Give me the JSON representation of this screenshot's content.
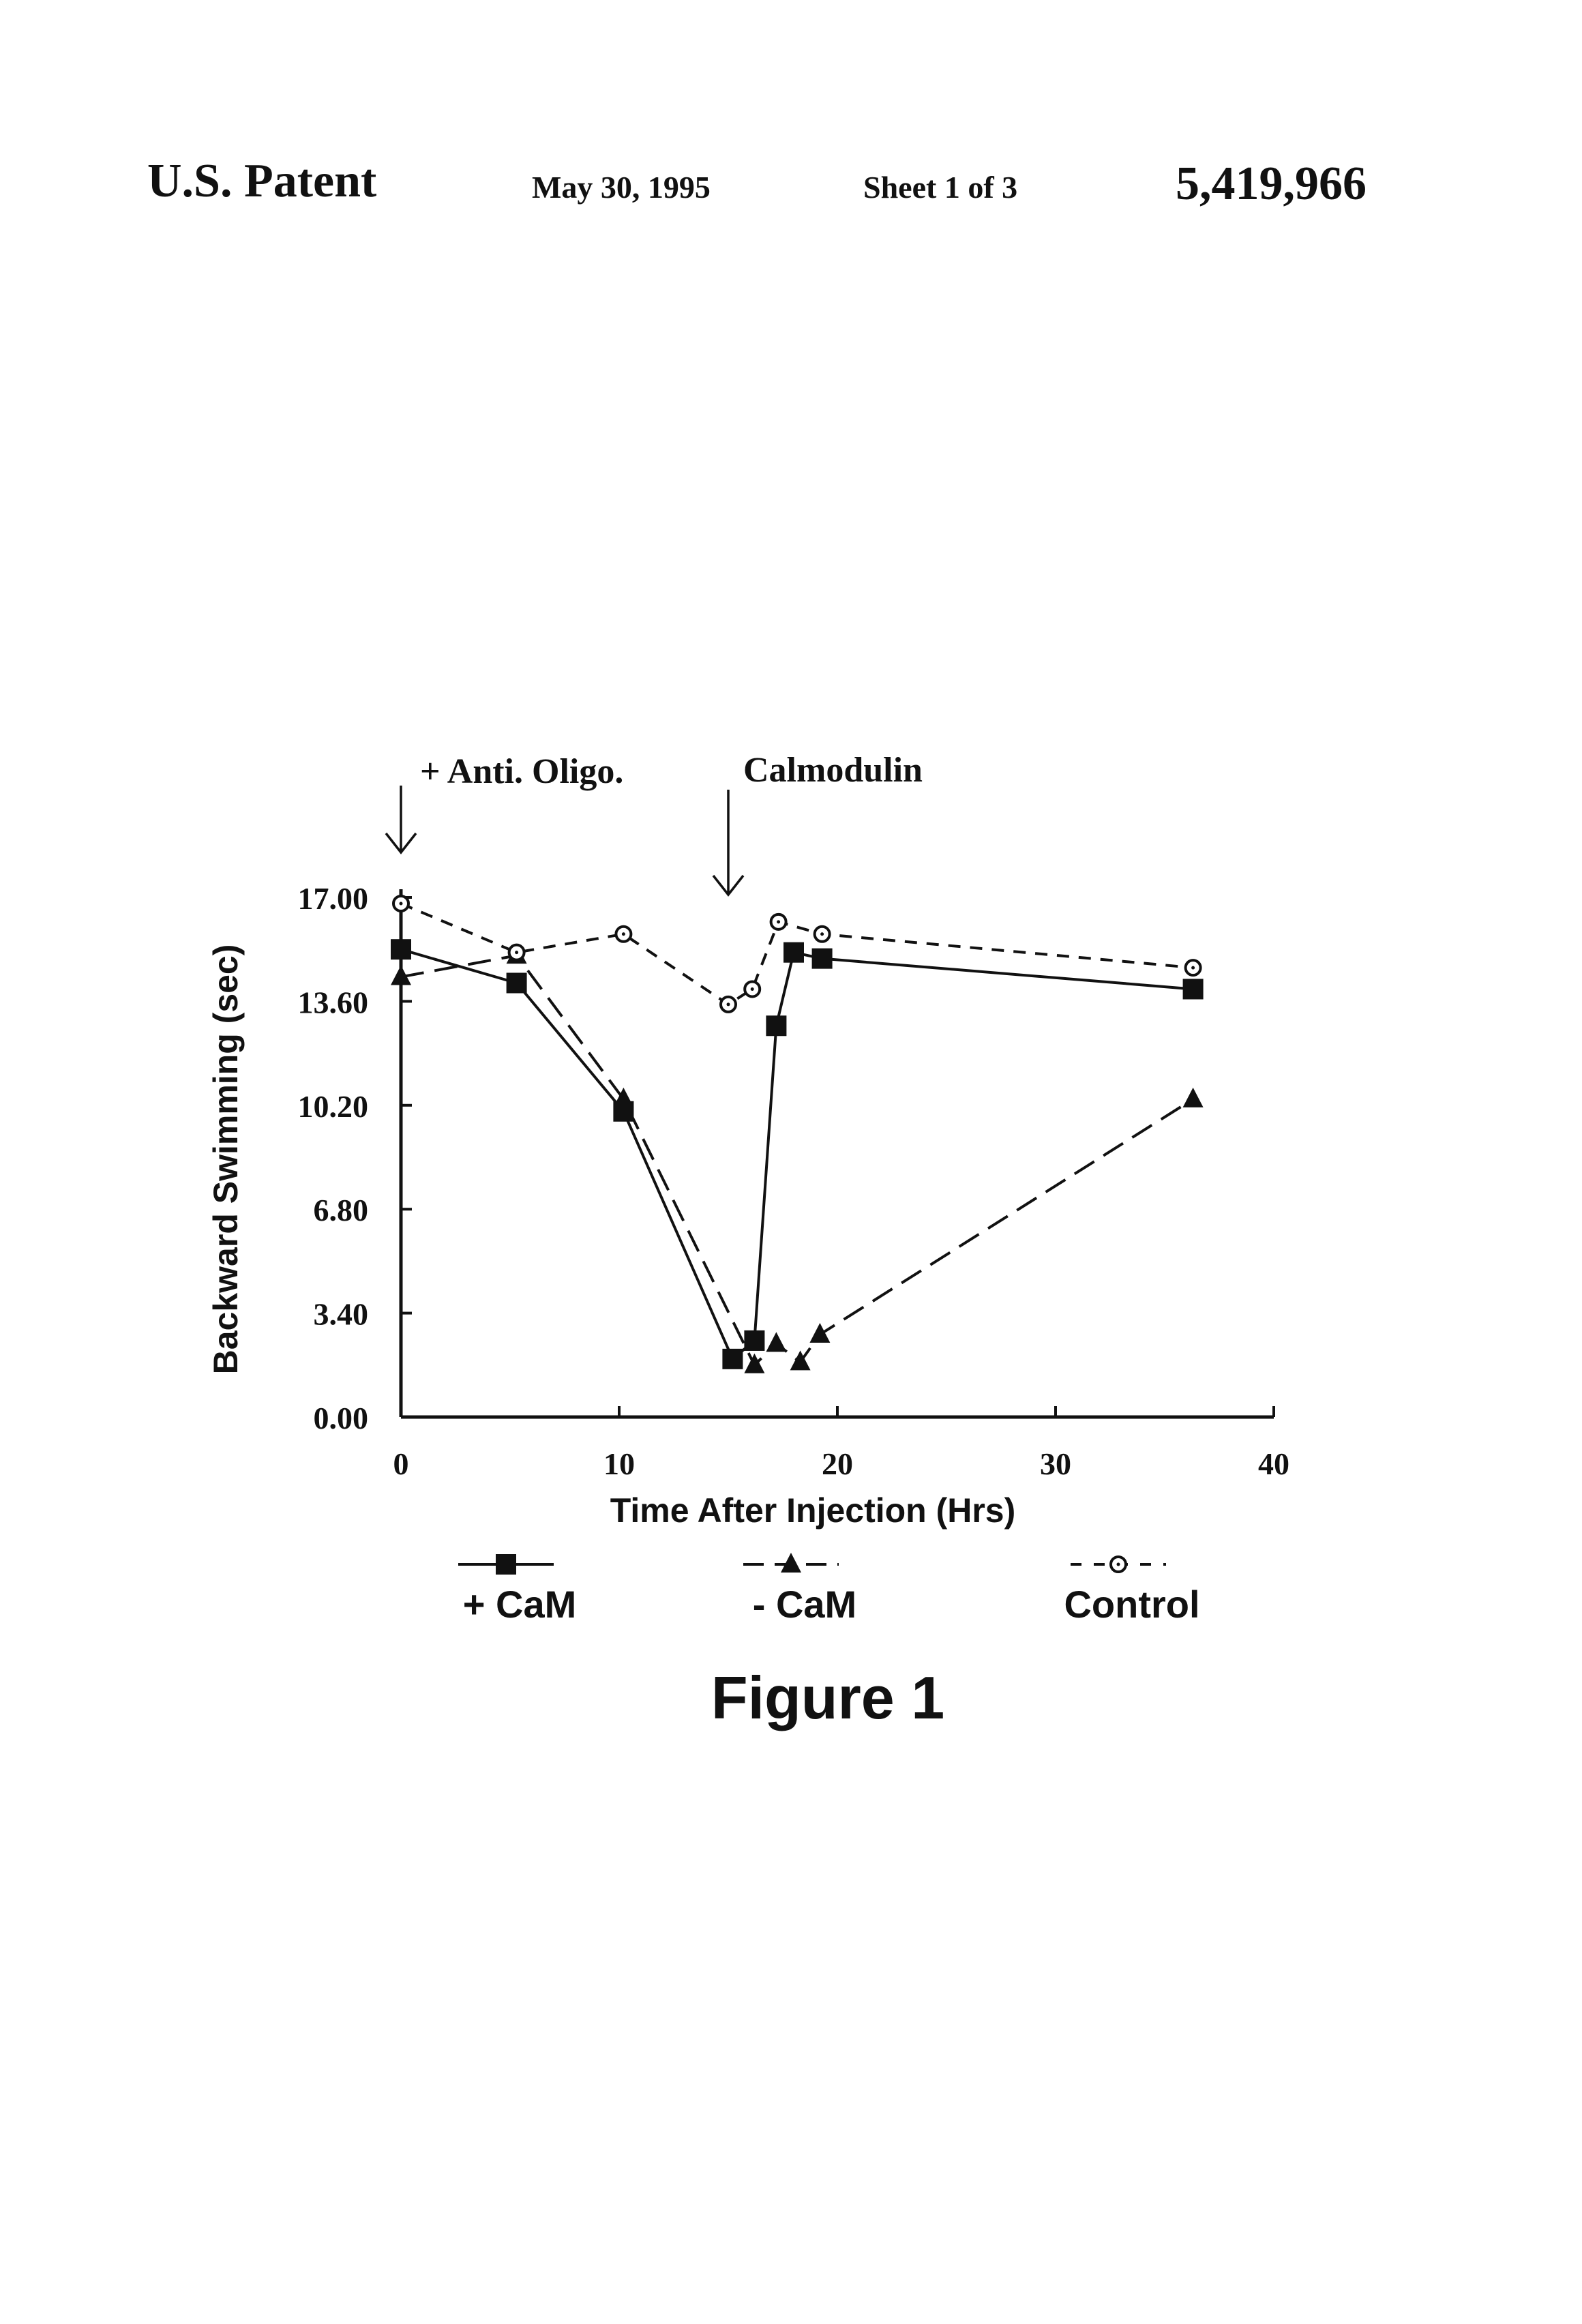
{
  "header": {
    "patent": "U.S. Patent",
    "date": "May 30, 1995",
    "sheet": "Sheet 1 of 3",
    "number": "5,419,966"
  },
  "annotations": {
    "injection": "+ Anti. Oligo.",
    "calmodulin": "Calmodulin"
  },
  "legend": {
    "plus_cam": "+ CaM",
    "minus_cam": "- CaM",
    "control": "Control"
  },
  "figure_caption": "Figure 1",
  "chart_data": {
    "type": "line",
    "xlabel": "Time After Injection  (Hrs)",
    "ylabel": "Backward Swimming (sec)",
    "xlim": [
      0,
      40
    ],
    "ylim": [
      0,
      17
    ],
    "x_ticks": [
      0,
      10,
      20,
      30,
      40
    ],
    "x_tick_labels": [
      "0",
      "10",
      "20",
      "30",
      "40"
    ],
    "y_ticks": [
      0,
      3.4,
      6.8,
      10.2,
      13.6,
      17
    ],
    "y_tick_labels": [
      "0.00",
      "3.40",
      "6.80",
      "10.20",
      "13.60",
      "17.00"
    ],
    "grid": false,
    "legend_position": "bottom",
    "series": [
      {
        "name": "+ CaM",
        "marker": "square",
        "line": "solid",
        "x": [
          0,
          5.3,
          10.2,
          15.2,
          16.2,
          17.2,
          18.0,
          19.3,
          36.3
        ],
        "y": [
          15.3,
          14.2,
          10.0,
          1.9,
          2.5,
          12.8,
          15.2,
          15.0,
          14.0
        ]
      },
      {
        "name": "- CaM",
        "marker": "triangle",
        "line": "dashed",
        "x": [
          0,
          5.3,
          10.2,
          16.2,
          17.2,
          18.3,
          19.2,
          36.3
        ],
        "y": [
          14.4,
          15.1,
          10.4,
          1.7,
          2.4,
          1.8,
          2.7,
          10.4
        ]
      },
      {
        "name": "Control",
        "marker": "circle",
        "line": "dashed",
        "x": [
          0,
          5.3,
          10.2,
          15.0,
          16.1,
          17.3,
          19.3,
          36.3
        ],
        "y": [
          16.8,
          15.2,
          15.8,
          13.5,
          14.0,
          16.2,
          15.8,
          14.7
        ]
      }
    ]
  }
}
